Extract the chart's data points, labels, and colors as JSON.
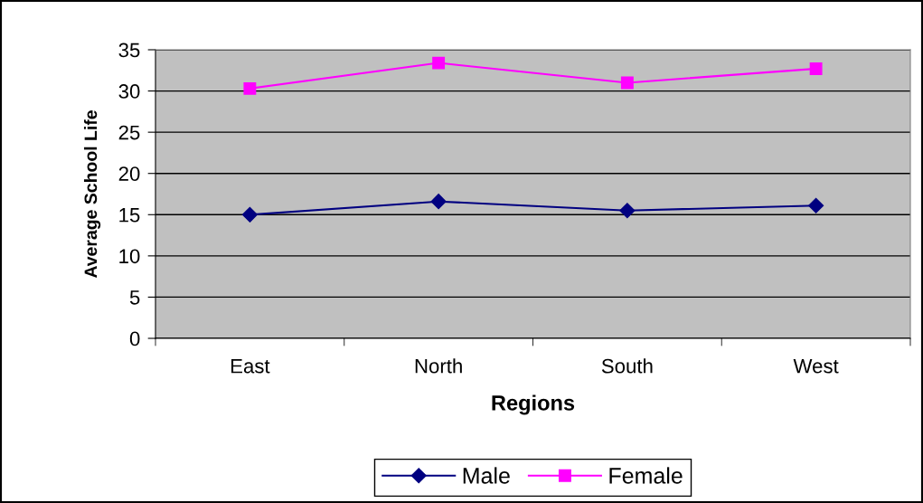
{
  "chart_data": {
    "type": "line",
    "categories": [
      "East",
      "North",
      "South",
      "West"
    ],
    "series": [
      {
        "name": "Male",
        "color": "#000080",
        "marker": "diamond",
        "values": [
          15.0,
          16.6,
          15.5,
          16.1
        ]
      },
      {
        "name": "Female",
        "color": "#ff00ff",
        "marker": "square",
        "values": [
          30.3,
          33.4,
          31.0,
          32.7
        ]
      }
    ],
    "xlabel": "Regions",
    "ylabel": "Average School Life",
    "ylim": [
      0,
      35
    ],
    "yticks": [
      0,
      5,
      10,
      15,
      20,
      25,
      30,
      35
    ],
    "grid": "y",
    "legend": "bottom",
    "line_style": "solid"
  }
}
